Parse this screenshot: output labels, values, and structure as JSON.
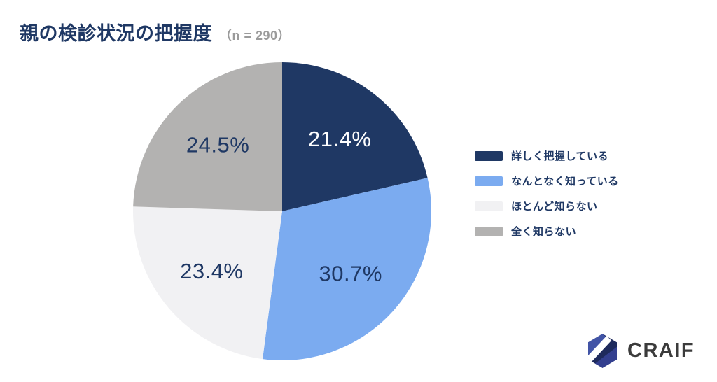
{
  "page": {
    "background": "#ffffff"
  },
  "header": {
    "title": "親の検診状況の把握度",
    "sample_size": "（n = 290）",
    "title_color": "#1f3864",
    "sample_color": "#9b9b9b"
  },
  "chart_data": {
    "type": "pie",
    "title": "親の検診状況の把握度",
    "n_label": "（n = 290）",
    "n": 290,
    "start_angle_deg": 0,
    "direction": "clockwise-from-top",
    "legend_position": "right",
    "label_radius_ratio": 0.62,
    "slices": [
      {
        "label": "詳しく把握している",
        "value": 21.4,
        "display": "21.4%",
        "color": "#1f3864",
        "label_color": "#ffffff"
      },
      {
        "label": "なんとなく知っている",
        "value": 30.7,
        "display": "30.7%",
        "color": "#7babf0",
        "label_color": "#1f3864"
      },
      {
        "label": "ほとんど知らない",
        "value": 23.4,
        "display": "23.4%",
        "color": "#f1f1f3",
        "label_color": "#1f3864"
      },
      {
        "label": "全く知らない",
        "value": 24.5,
        "display": "24.5%",
        "color": "#b3b2b1",
        "label_color": "#1f3864"
      }
    ]
  },
  "logo": {
    "text": "CRAIF",
    "text_color": "#3b3b3b",
    "hex_dark": "#1e2a5c",
    "hex_bright": "#4254a6",
    "hex_indigo": "#333f8f",
    "hex_stripe": "#ffffff"
  }
}
